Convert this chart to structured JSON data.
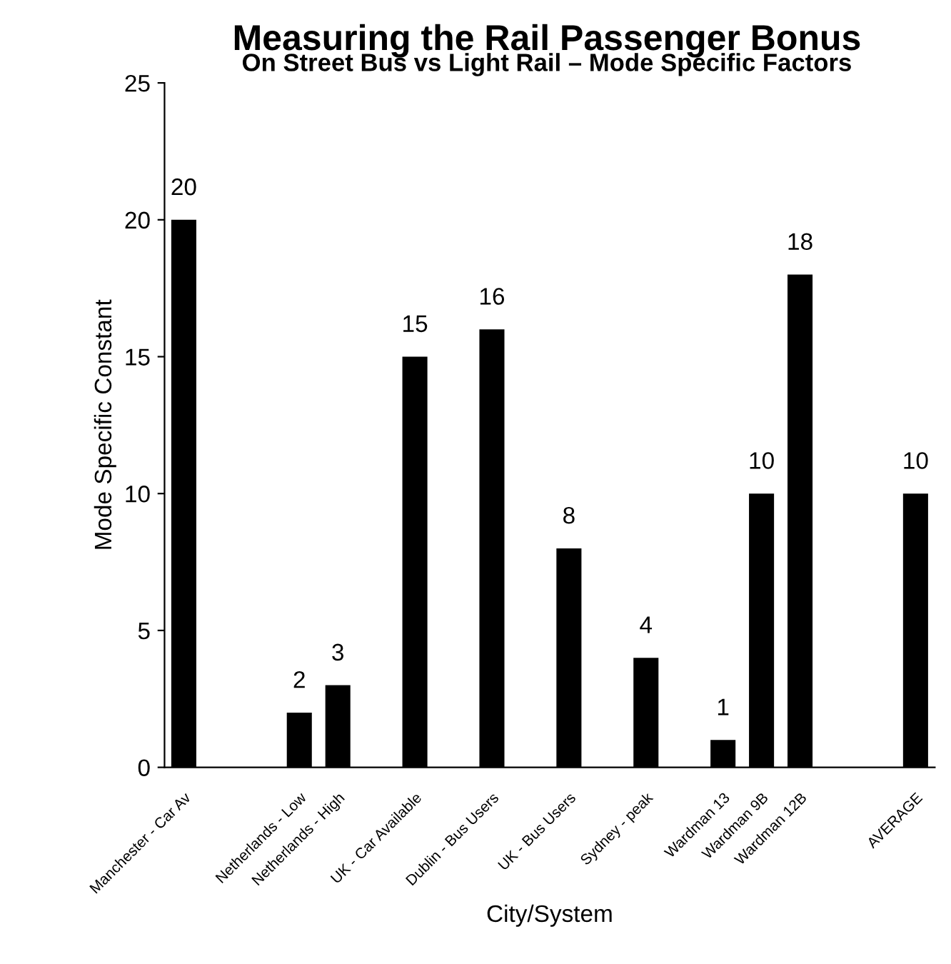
{
  "chart_data": {
    "type": "bar",
    "title": "Measuring the Rail Passenger Bonus",
    "subtitle": "On Street Bus vs Light Rail – Mode Specific Factors",
    "xlabel": "City/System",
    "ylabel": "Mode Specific Constant",
    "categories": [
      "Manchester - Car Av",
      null,
      null,
      "Netherlands - Low",
      "Netherlands - High",
      null,
      "UK - Car Available",
      null,
      "Dublin - Bus Users",
      null,
      "UK - Bus Users",
      null,
      "Sydney - peak",
      null,
      "Wardman 13",
      "Wardman 9B",
      "Wardman 12B",
      null,
      null,
      "AVERAGE"
    ],
    "values": [
      20,
      null,
      null,
      2,
      3,
      null,
      15,
      null,
      16,
      null,
      8,
      null,
      4,
      null,
      1,
      10,
      18,
      null,
      null,
      10
    ],
    "color": "#000000",
    "ylim": [
      0,
      25
    ],
    "yticks": [
      0,
      5,
      10,
      15,
      20,
      25
    ],
    "grid": false,
    "data_labels": true
  }
}
